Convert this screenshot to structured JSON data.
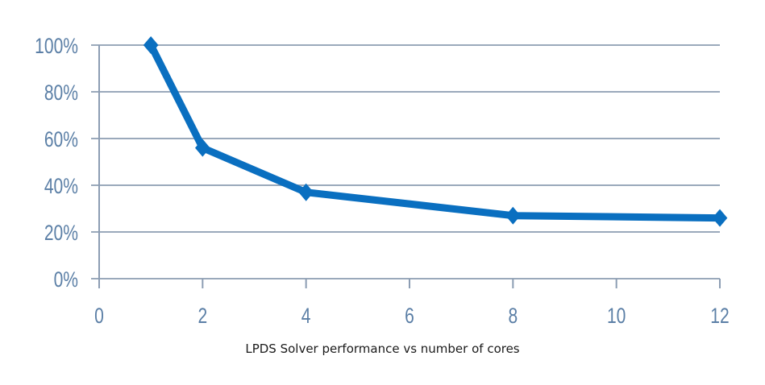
{
  "chart_data": {
    "type": "line",
    "title": "",
    "caption": "LPDS Solver performance vs number of cores",
    "xlabel": "",
    "ylabel": "",
    "xlim": [
      0,
      12
    ],
    "ylim": [
      0,
      100
    ],
    "x_ticks": [
      0,
      2,
      4,
      6,
      8,
      10,
      12
    ],
    "x_tick_labels": [
      "0",
      "2",
      "4",
      "6",
      "8",
      "10",
      "12"
    ],
    "y_ticks": [
      0,
      20,
      40,
      60,
      80,
      100
    ],
    "y_tick_labels": [
      "0%",
      "20%",
      "40%",
      "60%",
      "80%",
      "100%"
    ],
    "grid": "horizontal",
    "legend": "none",
    "series": [
      {
        "name": "LPDS Solver",
        "color": "#0a6fc0",
        "marker": "diamond",
        "x": [
          1,
          2,
          4,
          8,
          12
        ],
        "y": [
          100,
          56,
          37,
          27,
          26
        ]
      }
    ]
  },
  "colors": {
    "grid": "#9aa9bb",
    "axis": "#8c9db3",
    "tick_label": "#5b7fa6"
  }
}
